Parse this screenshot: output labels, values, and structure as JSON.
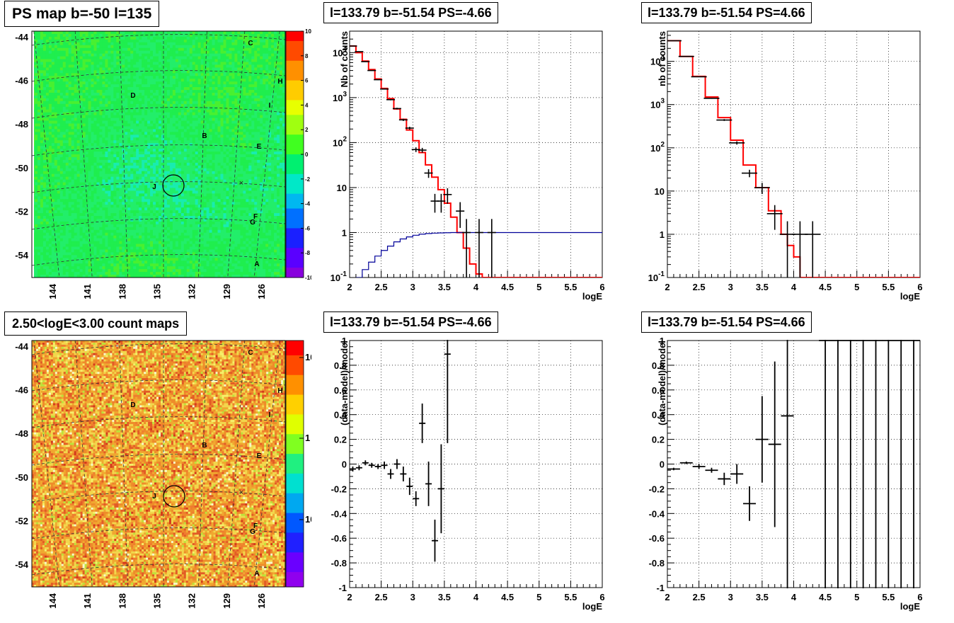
{
  "chart_data": [
    {
      "type": "heatmap",
      "title": "PS map b=-50 l=135",
      "y_ticks": [
        "-44",
        "-46",
        "-48",
        "-50",
        "-52",
        "-54"
      ],
      "x_ticks": [
        "144",
        "141",
        "138",
        "135",
        "132",
        "129",
        "126"
      ],
      "colorbar_ticks": [
        "10",
        "8",
        "6",
        "4",
        "2",
        "0",
        "-2",
        "-4",
        "-6",
        "-8",
        "-10"
      ],
      "zlim": [
        -10,
        10
      ],
      "source_labels": [
        "C",
        "H",
        "D",
        "I",
        "B",
        "E",
        "J",
        "F",
        "G",
        "A"
      ],
      "marker": "circle at l=133.79 b=-51.54"
    },
    {
      "type": "line",
      "title": "l=133.79 b=-51.54 PS=-4.66",
      "xlabel": "logE",
      "ylabel": "Nb of counts",
      "xlim": [
        2,
        6
      ],
      "ylim": [
        0.1,
        30000
      ],
      "yscale": "log",
      "x_ticks": [
        "2",
        "2.5",
        "3",
        "3.5",
        "4",
        "4.5",
        "5",
        "5.5",
        "6"
      ],
      "y_ticks": [
        "10^-1",
        "1",
        "10",
        "10^2",
        "10^3",
        "10^4"
      ],
      "series": [
        {
          "kind": "model_step",
          "color": "#ff0000",
          "x": [
            2.0,
            2.1,
            2.2,
            2.3,
            2.4,
            2.5,
            2.6,
            2.7,
            2.8,
            2.9,
            3.0,
            3.1,
            3.2,
            3.3,
            3.4,
            3.5,
            3.6,
            3.7,
            3.8,
            3.9,
            4.0,
            4.1,
            4.2,
            6.0
          ],
          "y": [
            14000,
            10000,
            6500,
            4200,
            2600,
            1600,
            950,
            560,
            330,
            190,
            110,
            60,
            32,
            17,
            9,
            4.5,
            2.2,
            1.0,
            0.45,
            0.2,
            0.12,
            0.1,
            0.1,
            0.1
          ]
        },
        {
          "kind": "efficiency_step",
          "color": "#000099",
          "x": [
            2.1,
            2.2,
            2.3,
            2.4,
            2.5,
            2.6,
            2.7,
            2.8,
            2.9,
            3.0,
            3.1,
            3.2,
            3.3,
            3.4,
            3.5,
            3.6,
            6.0
          ],
          "y": [
            0.1,
            0.15,
            0.22,
            0.3,
            0.4,
            0.5,
            0.62,
            0.72,
            0.8,
            0.87,
            0.92,
            0.95,
            0.97,
            0.98,
            0.99,
            1.0,
            1.0
          ]
        },
        {
          "kind": "data_points",
          "color": "#000000",
          "x": [
            2.05,
            2.15,
            2.25,
            2.35,
            2.45,
            2.55,
            2.65,
            2.75,
            2.85,
            2.95,
            3.05,
            3.15,
            3.25,
            3.35,
            3.45,
            3.55,
            3.75,
            3.85,
            4.05,
            4.25
          ],
          "y": [
            14000,
            10500,
            6300,
            4000,
            2500,
            1550,
            900,
            570,
            320,
            210,
            70,
            68,
            21,
            5,
            5,
            7,
            3,
            1,
            1,
            1
          ]
        }
      ]
    },
    {
      "type": "line",
      "title": "l=133.79 b=-51.54 PS=4.66",
      "xlabel": "logE",
      "ylabel": "nb of counts",
      "xlim": [
        2,
        6
      ],
      "ylim": [
        0.1,
        50000
      ],
      "yscale": "log",
      "x_ticks": [
        "2",
        "2.5",
        "3",
        "3.5",
        "4",
        "4.5",
        "5",
        "5.5",
        "6"
      ],
      "y_ticks": [
        "10^-1",
        "1",
        "10",
        "10^2",
        "10^3",
        "10^4"
      ],
      "series": [
        {
          "kind": "model_step",
          "color": "#ff0000",
          "x": [
            2.0,
            2.2,
            2.4,
            2.6,
            2.8,
            3.0,
            3.2,
            3.4,
            3.6,
            3.8,
            3.9,
            4.0,
            4.1,
            4.2,
            6.0
          ],
          "y": [
            30000,
            13000,
            4500,
            1500,
            500,
            150,
            40,
            12,
            3.5,
            1.0,
            0.55,
            0.3,
            0.1,
            0.1,
            0.1
          ]
        },
        {
          "kind": "data_points",
          "color": "#000000",
          "x": [
            2.1,
            2.3,
            2.5,
            2.7,
            2.9,
            3.1,
            3.3,
            3.5,
            3.7,
            3.9,
            4.1,
            4.3
          ],
          "y": [
            30000,
            13000,
            4400,
            1400,
            440,
            130,
            26,
            12,
            3,
            1,
            1,
            1
          ]
        }
      ]
    },
    {
      "type": "heatmap",
      "title": "2.50<logE<3.00 count maps",
      "y_ticks": [
        "-44",
        "-46",
        "-48",
        "-50",
        "-52",
        "-54"
      ],
      "x_ticks": [
        "144",
        "141",
        "138",
        "135",
        "132",
        "129",
        "126"
      ],
      "colorbar_ticks": [
        "10",
        "1",
        "10^-1"
      ],
      "zscale": "log",
      "source_labels": [
        "C",
        "H",
        "D",
        "I",
        "B",
        "E",
        "J",
        "F",
        "G",
        "A"
      ],
      "marker": "circle at l=133.79 b=-51.54"
    },
    {
      "type": "scatter",
      "title": "l=133.79 b=-51.54 PS=-4.66",
      "xlabel": "logE",
      "ylabel": "(data-model)/model",
      "xlim": [
        2,
        6
      ],
      "ylim": [
        -1,
        1
      ],
      "x_ticks": [
        "2",
        "2.5",
        "3",
        "3.5",
        "4",
        "4.5",
        "5",
        "5.5",
        "6"
      ],
      "y_ticks": [
        "-1",
        "-0.8",
        "-0.6",
        "-0.4",
        "-0.2",
        "0",
        "0.2",
        "0.4",
        "0.6",
        "0.8",
        "1"
      ],
      "points": [
        {
          "x": 2.05,
          "y": -0.04,
          "err": 0.02
        },
        {
          "x": 2.15,
          "y": -0.03,
          "err": 0.02
        },
        {
          "x": 2.25,
          "y": 0.01,
          "err": 0.02
        },
        {
          "x": 2.35,
          "y": -0.01,
          "err": 0.02
        },
        {
          "x": 2.45,
          "y": -0.02,
          "err": 0.02
        },
        {
          "x": 2.55,
          "y": -0.01,
          "err": 0.03
        },
        {
          "x": 2.65,
          "y": -0.08,
          "err": 0.04
        },
        {
          "x": 2.75,
          "y": 0.0,
          "err": 0.04
        },
        {
          "x": 2.85,
          "y": -0.08,
          "err": 0.06
        },
        {
          "x": 2.95,
          "y": -0.18,
          "err": 0.07
        },
        {
          "x": 3.05,
          "y": -0.28,
          "err": 0.06
        },
        {
          "x": 3.15,
          "y": 0.33,
          "err": 0.16
        },
        {
          "x": 3.25,
          "y": -0.16,
          "err": 0.18
        },
        {
          "x": 3.35,
          "y": -0.62,
          "err": 0.17
        },
        {
          "x": 3.45,
          "y": -0.2,
          "err": 0.36
        },
        {
          "x": 3.55,
          "y": 0.89,
          "err": 0.72
        }
      ]
    },
    {
      "type": "scatter",
      "title": "l=133.79 b=-51.54 PS=4.66",
      "xlabel": "logE",
      "ylabel": "(data-model)/model",
      "xlim": [
        2,
        6
      ],
      "ylim": [
        -1,
        1
      ],
      "x_ticks": [
        "2",
        "2.5",
        "3",
        "3.5",
        "4",
        "4.5",
        "5",
        "5.5",
        "6"
      ],
      "y_ticks": [
        "-1",
        "-0.8",
        "-0.6",
        "-0.4",
        "-0.2",
        "0",
        "0.2",
        "0.4",
        "0.6",
        "0.8",
        "1"
      ],
      "points": [
        {
          "x": 2.1,
          "y": -0.04,
          "err": 0.01
        },
        {
          "x": 2.3,
          "y": 0.01,
          "err": 0.01
        },
        {
          "x": 2.5,
          "y": -0.02,
          "err": 0.02
        },
        {
          "x": 2.7,
          "y": -0.05,
          "err": 0.02
        },
        {
          "x": 2.9,
          "y": -0.12,
          "err": 0.05
        },
        {
          "x": 3.1,
          "y": -0.08,
          "err": 0.08
        },
        {
          "x": 3.3,
          "y": -0.32,
          "err": 0.14
        },
        {
          "x": 3.5,
          "y": 0.2,
          "err": 0.35
        },
        {
          "x": 3.7,
          "y": 0.16,
          "err": 0.67
        },
        {
          "x": 3.9,
          "y": 0.39,
          "err": 1.6
        },
        {
          "x": 4.5,
          "y": 1.0,
          "err": 2.5
        },
        {
          "x": 4.7,
          "y": 1.0,
          "err": 2.5
        },
        {
          "x": 4.9,
          "y": 1.0,
          "err": 2.5
        },
        {
          "x": 5.1,
          "y": 1.0,
          "err": 2.5
        },
        {
          "x": 5.3,
          "y": 1.0,
          "err": 2.5
        },
        {
          "x": 5.5,
          "y": 1.0,
          "err": 2.5
        },
        {
          "x": 5.7,
          "y": 1.0,
          "err": 2.5
        },
        {
          "x": 5.9,
          "y": 1.0,
          "err": 2.5
        }
      ]
    }
  ]
}
